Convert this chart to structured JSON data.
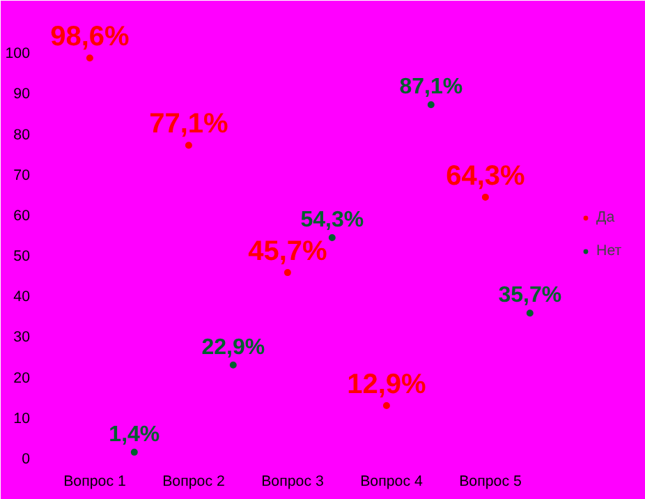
{
  "chart_data": {
    "type": "scatter",
    "marker": "circle",
    "categories": [
      "Вопрос 1",
      "Вопрос 2",
      "Вопрос 3",
      "Вопрос 4",
      "Вопрос 5"
    ],
    "series": [
      {
        "name": "Да",
        "color": "#ff0000",
        "values": [
          98.6,
          77.1,
          45.7,
          12.9,
          64.3
        ],
        "value_labels": [
          "98,6%",
          "77,1%",
          "45,7%",
          "12,9%",
          "64,3%"
        ]
      },
      {
        "name": "Нет",
        "color": "#00602e",
        "values": [
          1.4,
          22.9,
          54.3,
          87.1,
          35.7
        ],
        "value_labels": [
          "1,4%",
          "22,9%",
          "54,3%",
          "87,1%",
          "35,7%"
        ]
      }
    ],
    "ylim": [
      0,
      110
    ],
    "yticks": [
      0,
      10,
      20,
      30,
      40,
      50,
      60,
      70,
      80,
      90,
      100
    ],
    "grid": false,
    "legend": "right"
  }
}
